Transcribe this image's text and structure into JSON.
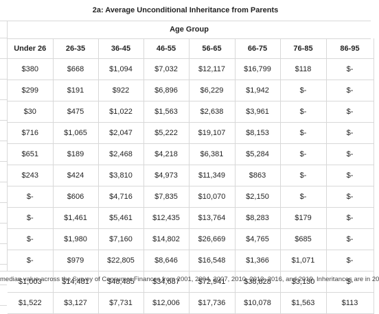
{
  "title": "2a: Average Unconditional Inheritance from Parents",
  "group_label": "Age Group",
  "table": {
    "headers": [
      "Under 26",
      "26-35",
      "36-45",
      "46-55",
      "56-65",
      "66-75",
      "76-85",
      "86-95"
    ],
    "rows": [
      [
        "$380",
        "$668",
        "$1,094",
        "$7,032",
        "$12,117",
        "$16,799",
        "$118",
        "$-"
      ],
      [
        "$299",
        "$191",
        "$922",
        "$6,896",
        "$6,229",
        "$1,942",
        "$-",
        "$-"
      ],
      [
        "$30",
        "$475",
        "$1,022",
        "$1,563",
        "$2,638",
        "$3,961",
        "$-",
        "$-"
      ],
      [
        "$716",
        "$1,065",
        "$2,047",
        "$5,222",
        "$19,107",
        "$8,153",
        "$-",
        "$-"
      ],
      [
        "$651",
        "$189",
        "$2,468",
        "$4,218",
        "$6,381",
        "$5,284",
        "$-",
        "$-"
      ],
      [
        "$243",
        "$424",
        "$3,810",
        "$4,973",
        "$11,349",
        "$863",
        "$-",
        "$-"
      ],
      [
        "$-",
        "$606",
        "$4,716",
        "$7,835",
        "$10,070",
        "$2,150",
        "$-",
        "$-"
      ],
      [
        "$-",
        "$1,461",
        "$5,461",
        "$12,435",
        "$13,764",
        "$8,283",
        "$179",
        "$-"
      ],
      [
        "$-",
        "$1,980",
        "$7,160",
        "$14,802",
        "$26,669",
        "$4,765",
        "$685",
        "$-"
      ],
      [
        "$-",
        "$979",
        "$22,805",
        "$8,646",
        "$16,548",
        "$1,366",
        "$1,071",
        "$-"
      ],
      [
        "$1,003",
        "$14,481",
        "$48,485",
        "$34,687",
        "$72,941",
        "$38,828",
        "$3,130",
        "$-"
      ],
      [
        "$1,522",
        "$3,127",
        "$7,731",
        "$12,006",
        "$17,736",
        "$10,078",
        "$1,563",
        "$113"
      ]
    ]
  },
  "footnote": "median value across the Survey of Consumer Finances from 2001, 2004, 2007, 2010, 2013, 2016, and 2019. Inheritances are in 20"
}
